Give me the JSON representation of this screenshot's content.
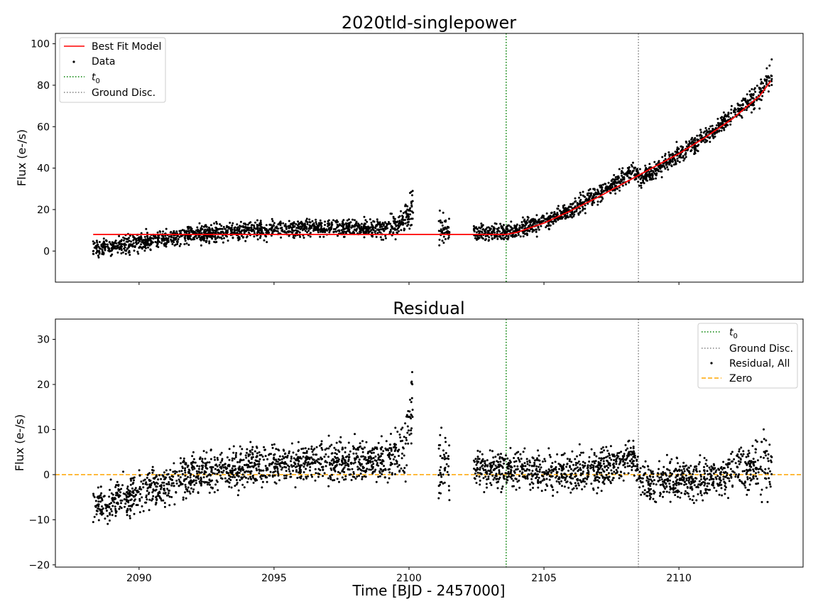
{
  "chart_data": [
    {
      "type": "scatter",
      "title": "2020tld-singlepower",
      "ylabel": "Flux (e-/s)",
      "xlabel": "",
      "xlim": [
        2086.9,
        2114.6
      ],
      "ylim": [
        -15,
        105
      ],
      "yticks": [
        0,
        20,
        40,
        60,
        80,
        100
      ],
      "grid": false,
      "legend_position": "top-left",
      "legend": [
        "Best Fit Model",
        "Data",
        "t0",
        "Ground Disc."
      ],
      "vlines": [
        {
          "label": "t0",
          "x": 2103.6,
          "color": "#008000",
          "style": "dotted"
        },
        {
          "label": "Ground Disc.",
          "x": 2108.5,
          "color": "#808080",
          "style": "dotted"
        }
      ],
      "model": {
        "label": "Best Fit Model",
        "color": "#ff0000",
        "x": [
          2088.3,
          2090,
          2092,
          2094,
          2096,
          2098,
          2100,
          2102,
          2103.6,
          2104,
          2105,
          2106,
          2107,
          2108,
          2108.5,
          2109,
          2110,
          2111,
          2112,
          2113,
          2113.4
        ],
        "y": [
          8,
          8,
          8,
          8,
          8,
          8,
          8,
          8,
          8,
          9,
          13.5,
          19.5,
          26,
          33,
          36.5,
          40,
          47,
          55,
          64,
          75,
          82
        ]
      },
      "data_trend": {
        "label": "Data",
        "color": "#000000",
        "x": [
          2088.3,
          2089,
          2090,
          2091,
          2092,
          2093,
          2094,
          2095,
          2096,
          2097,
          2098,
          2099,
          2099.8,
          2100.2,
          2101.2,
          2101.4,
          2102.4,
          2103,
          2103.6,
          2104,
          2105,
          2106,
          2107,
          2108,
          2108.3,
          2108.6,
          2109,
          2110,
          2111,
          2112,
          2113,
          2113.4
        ],
        "y": [
          1,
          2,
          4,
          6,
          8,
          9,
          10,
          10.5,
          11,
          11,
          11,
          11,
          14,
          22,
          10,
          10,
          9,
          9,
          9,
          10,
          14,
          20,
          27,
          36,
          40,
          35,
          38,
          47,
          55,
          65,
          77,
          84
        ],
        "scatter": [
          3,
          3,
          3,
          3,
          3,
          3,
          3,
          3,
          3,
          3,
          3,
          3,
          5,
          9,
          5,
          4,
          3,
          3,
          3,
          3,
          3,
          3,
          3,
          3,
          3,
          3,
          3,
          3,
          3,
          3,
          4,
          5
        ]
      }
    },
    {
      "type": "scatter",
      "title": "Residual",
      "ylabel": "Flux (e-/s)",
      "xlabel": "Time [BJD - 2457000]",
      "xlim": [
        2086.9,
        2114.6
      ],
      "ylim": [
        -20.5,
        34.5
      ],
      "xticks": [
        2090,
        2095,
        2100,
        2105,
        2110
      ],
      "yticks": [
        -20,
        -10,
        0,
        10,
        20,
        30
      ],
      "grid": false,
      "legend_position": "top-right",
      "legend": [
        "t0",
        "Ground Disc.",
        "Residual, All",
        "Zero"
      ],
      "zero_line": {
        "label": "Zero",
        "y": 0,
        "color": "#ffa500",
        "style": "dashed"
      },
      "vlines": [
        {
          "label": "t0",
          "x": 2103.6,
          "color": "#008000",
          "style": "dotted"
        },
        {
          "label": "Ground Disc.",
          "x": 2108.5,
          "color": "#808080",
          "style": "dotted"
        }
      ],
      "residual_trend": {
        "label": "Residual, All",
        "color": "#000000",
        "x": [
          2088.3,
          2089,
          2090,
          2091,
          2092,
          2093,
          2094,
          2095,
          2096,
          2097,
          2098,
          2099,
          2099.8,
          2100.2,
          2101.2,
          2101.4,
          2102.4,
          2103,
          2103.6,
          2104,
          2105,
          2106,
          2107,
          2108,
          2108.3,
          2108.6,
          2109,
          2110,
          2111,
          2112,
          2113,
          2113.4
        ],
        "y": [
          -7,
          -6,
          -4,
          -2,
          0,
          1,
          2,
          2.5,
          3,
          3,
          3,
          3,
          6,
          14,
          2,
          2,
          1,
          1,
          1,
          1,
          0.5,
          0.5,
          1,
          3,
          4,
          -1,
          -2,
          -1,
          -1,
          1,
          2,
          2
        ],
        "scatter": [
          3,
          3,
          3,
          3,
          3,
          3,
          3,
          3,
          3,
          3,
          3,
          3,
          5,
          9,
          5,
          4,
          3,
          3,
          3,
          3,
          3,
          3,
          3,
          3,
          3,
          3,
          3,
          3,
          3,
          3,
          4,
          5
        ]
      }
    }
  ],
  "legend_labels": {
    "best_fit": "Best Fit Model",
    "data": "Data",
    "t0_main": "t",
    "t0_sub": "0",
    "ground": "Ground Disc.",
    "residual": "Residual, All",
    "zero": "Zero"
  },
  "colors": {
    "model": "#ff0000",
    "t0": "#008000",
    "ground": "#808080",
    "zero": "#ffa500",
    "points": "#000000"
  }
}
